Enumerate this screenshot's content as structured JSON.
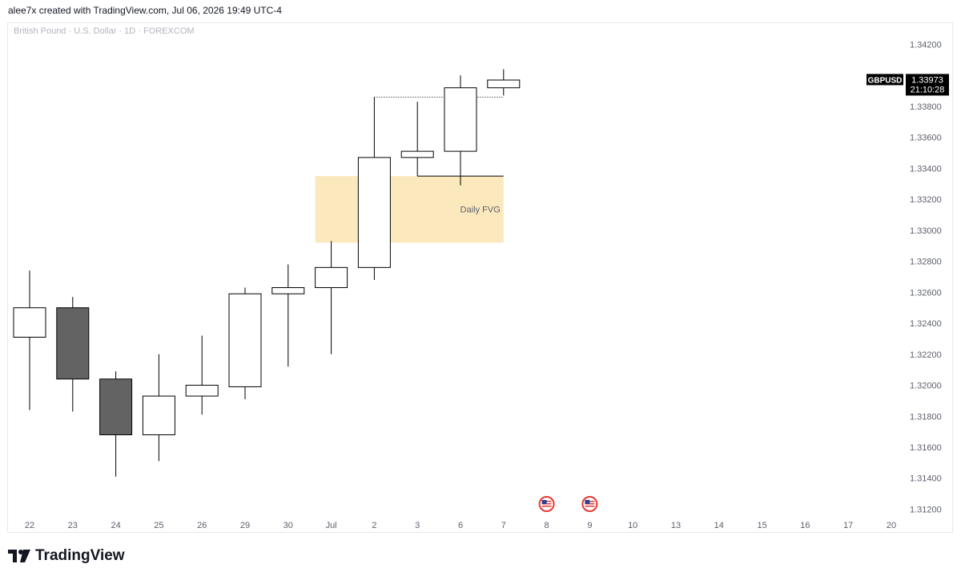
{
  "header": {
    "attribution": "alee7x created with TradingView.com, Jul 06, 2026 19:49 UTC-4"
  },
  "symbol_description": "British Pound · U.S. Dollar · 1D · FOREXCOM",
  "price_badge": {
    "symbol": "GBPUSD",
    "price": "1.33973",
    "countdown": "21:10:28",
    "price_value": 1.33973
  },
  "footer": {
    "brand": "TradingView"
  },
  "colors": {
    "bull_fill": "#ffffff",
    "bear_fill": "#636363",
    "candle_border": "#000000",
    "fvg_fill": "#fce8bd",
    "badge_bg": "#000000"
  },
  "chart_data": {
    "type": "candlestick",
    "title": "",
    "x_tick_labels": [
      "22",
      "23",
      "24",
      "25",
      "26",
      "29",
      "30",
      "Jul",
      "2",
      "3",
      "6",
      "7",
      "8",
      "9",
      "10",
      "13",
      "14",
      "15",
      "16",
      "17",
      "20"
    ],
    "y_ticks": [
      1.312,
      1.314,
      1.316,
      1.318,
      1.32,
      1.322,
      1.324,
      1.326,
      1.328,
      1.33,
      1.332,
      1.334,
      1.336,
      1.338,
      1.342
    ],
    "y_tick_labels": [
      "1.31200",
      "1.31400",
      "1.31600",
      "1.31800",
      "1.32000",
      "1.32200",
      "1.32400",
      "1.32600",
      "1.32800",
      "1.33000",
      "1.33200",
      "1.33400",
      "1.33600",
      "1.33800",
      "1.34200"
    ],
    "ylim": [
      1.3113,
      1.3428
    ],
    "candles": [
      {
        "date": "22",
        "open": 1.3231,
        "high": 1.3274,
        "low": 1.3184,
        "close": 1.325
      },
      {
        "date": "23",
        "open": 1.325,
        "high": 1.3257,
        "low": 1.3183,
        "close": 1.3204
      },
      {
        "date": "24",
        "open": 1.3204,
        "high": 1.3209,
        "low": 1.3141,
        "close": 1.3168
      },
      {
        "date": "25",
        "open": 1.3168,
        "high": 1.322,
        "low": 1.3151,
        "close": 1.3193
      },
      {
        "date": "26",
        "open": 1.3193,
        "high": 1.3232,
        "low": 1.3181,
        "close": 1.32
      },
      {
        "date": "29",
        "open": 1.3199,
        "high": 1.3263,
        "low": 1.3191,
        "close": 1.3259
      },
      {
        "date": "30",
        "open": 1.3259,
        "high": 1.3278,
        "low": 1.3212,
        "close": 1.3263
      },
      {
        "date": "Jul",
        "open": 1.3263,
        "high": 1.3293,
        "low": 1.322,
        "close": 1.3276
      },
      {
        "date": "2",
        "open": 1.3276,
        "high": 1.3386,
        "low": 1.3268,
        "close": 1.3347
      },
      {
        "date": "3",
        "open": 1.3347,
        "high": 1.3383,
        "low": 1.3335,
        "close": 1.3351
      },
      {
        "date": "6",
        "open": 1.3351,
        "high": 1.34,
        "low": 1.3329,
        "close": 1.3392
      },
      {
        "date": "7",
        "open": 1.3392,
        "high": 1.3404,
        "low": 1.3387,
        "close": 1.3397
      }
    ],
    "fvg_zone": {
      "label": "Daily FVG",
      "top": 1.3335,
      "bottom": 1.3292
    },
    "high_line": {
      "value": 1.3386
    },
    "event_markers": [
      "8",
      "9"
    ],
    "grid": false
  }
}
